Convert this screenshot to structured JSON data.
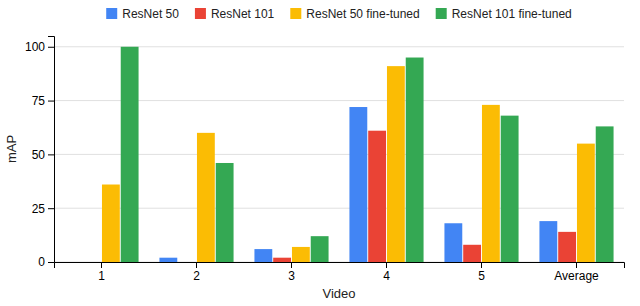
{
  "chart_data": {
    "type": "bar",
    "xlabel": "Video",
    "ylabel": "mAP",
    "categories": [
      "1",
      "2",
      "3",
      "4",
      "5",
      "Average"
    ],
    "series": [
      {
        "name": "ResNet 50",
        "color": "#4285F4",
        "values": [
          0,
          2,
          6,
          72,
          18,
          19
        ]
      },
      {
        "name": "ResNet 101",
        "color": "#EA4335",
        "values": [
          0,
          0,
          2,
          61,
          8,
          14
        ]
      },
      {
        "name": "ResNet 50 fine-tuned",
        "color": "#FBBC04",
        "values": [
          36,
          60,
          7,
          91,
          73,
          55
        ]
      },
      {
        "name": "ResNet 101 fine-tuned",
        "color": "#34A853",
        "values": [
          100,
          46,
          12,
          95,
          68,
          63
        ]
      }
    ],
    "ylim": [
      0,
      105
    ],
    "yticks": [
      0,
      25,
      50,
      75,
      100
    ],
    "grid": true,
    "legend": "top"
  }
}
